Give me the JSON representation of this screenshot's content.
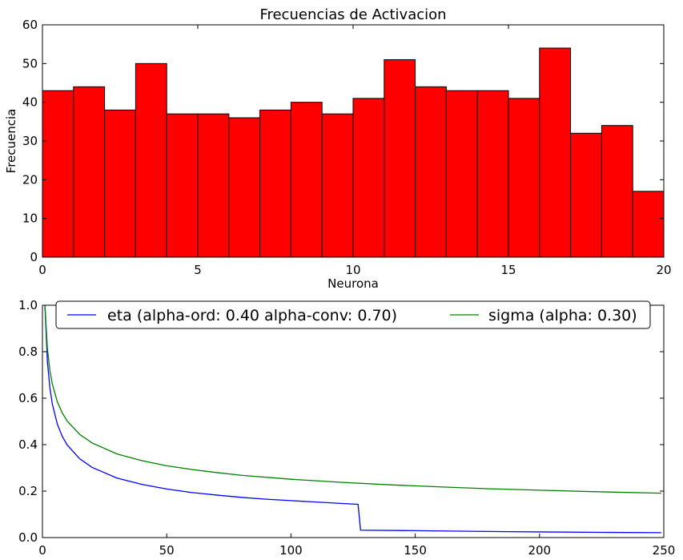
{
  "chart_data": [
    {
      "type": "bar",
      "title": "Frecuencias de Activacion",
      "xlabel": "Neurona",
      "ylabel": "Frecuencia",
      "xlim": [
        0,
        20
      ],
      "ylim": [
        0,
        60
      ],
      "xticks": [
        0,
        5,
        10,
        15,
        20
      ],
      "yticks": [
        0,
        10,
        20,
        30,
        40,
        50,
        60
      ],
      "bin_edges": [
        0,
        1,
        2,
        3,
        4,
        5,
        6,
        7,
        8,
        9,
        10,
        11,
        12,
        13,
        14,
        15,
        16,
        17,
        18,
        19,
        20
      ],
      "values": [
        43,
        44,
        38,
        50,
        37,
        37,
        36,
        38,
        40,
        37,
        41,
        51,
        44,
        43,
        43,
        41,
        54,
        32,
        34,
        17
      ],
      "bar_color": "#ff0000",
      "edge_color": "#000000",
      "grid": false
    },
    {
      "type": "line",
      "title": "",
      "xlabel": "",
      "ylabel": "",
      "xlim": [
        0,
        250
      ],
      "ylim": [
        0.0,
        1.0
      ],
      "xticks": [
        0,
        50,
        100,
        150,
        200,
        250
      ],
      "yticks": [
        "0.0",
        "0.2",
        "0.4",
        "0.6",
        "0.8",
        "1.0"
      ],
      "legend_placement": "top-center",
      "grid": false,
      "series": [
        {
          "name": "eta (alpha-ord: 0.40 alpha-conv: 0.70)",
          "color": "#0000ff",
          "points": [
            [
              1,
              1.0
            ],
            [
              2,
              0.758
            ],
            [
              3,
              0.644
            ],
            [
              4,
              0.574
            ],
            [
              6,
              0.488
            ],
            [
              8,
              0.435
            ],
            [
              10,
              0.398
            ],
            [
              15,
              0.339
            ],
            [
              20,
              0.302
            ],
            [
              30,
              0.256
            ],
            [
              40,
              0.229
            ],
            [
              50,
              0.209
            ],
            [
              60,
              0.194
            ],
            [
              70,
              0.183
            ],
            [
              80,
              0.173
            ],
            [
              90,
              0.165
            ],
            [
              100,
              0.159
            ],
            [
              110,
              0.153
            ],
            [
              120,
              0.147
            ],
            [
              127,
              0.143
            ],
            [
              128,
              0.032
            ],
            [
              150,
              0.0297
            ],
            [
              175,
              0.0267
            ],
            [
              200,
              0.0244
            ],
            [
              225,
              0.0225
            ],
            [
              249,
              0.021
            ]
          ]
        },
        {
          "name": "sigma (alpha: 0.30)",
          "color": "#008000",
          "points": [
            [
              1,
              1.0
            ],
            [
              2,
              0.812
            ],
            [
              3,
              0.719
            ],
            [
              4,
              0.66
            ],
            [
              6,
              0.584
            ],
            [
              8,
              0.536
            ],
            [
              10,
              0.501
            ],
            [
              15,
              0.444
            ],
            [
              20,
              0.407
            ],
            [
              30,
              0.36
            ],
            [
              40,
              0.331
            ],
            [
              50,
              0.309
            ],
            [
              60,
              0.293
            ],
            [
              70,
              0.28
            ],
            [
              80,
              0.268
            ],
            [
              100,
              0.251
            ],
            [
              120,
              0.238
            ],
            [
              140,
              0.227
            ],
            [
              160,
              0.218
            ],
            [
              180,
              0.21
            ],
            [
              200,
              0.204
            ],
            [
              220,
              0.198
            ],
            [
              249,
              0.191
            ]
          ]
        }
      ]
    }
  ]
}
